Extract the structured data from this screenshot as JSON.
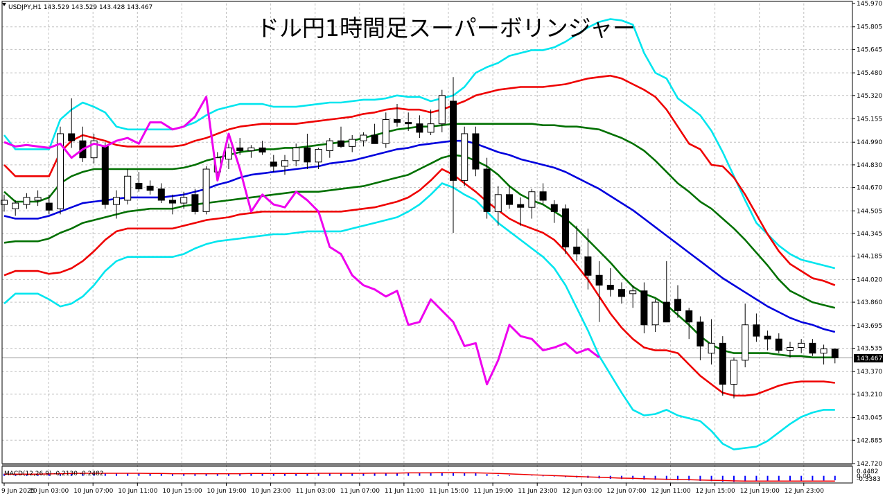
{
  "symbol_label": "USDJPY,H1  143.529 143.529 143.428 143.467",
  "title": "ドル円1時間足スーパーボリンジャー",
  "macd_label": "MACD(12,26,9) -0.2130 -0.2482",
  "macd_scale": {
    "top": "0.4482",
    "zero": "0.00",
    "bottom": "-0.3383"
  },
  "current_price_label": "143.467",
  "colors": {
    "grid": "#c0c0c0",
    "sigma3": "#00e5ee",
    "sigma2": "#ee0000",
    "sigma1": "#007000",
    "middle": "#0000dd",
    "lagging": "#ee00ee",
    "candle": "#000000",
    "macd_hist": "#0000ff",
    "macd_signal": "#ee0000"
  },
  "chart_data": {
    "type": "candlestick",
    "title": "ドル円1時間足スーパーボリンジャー",
    "ylim": [
      142.72,
      145.97
    ],
    "y_ticks": [
      "145.970",
      "145.805",
      "145.645",
      "145.480",
      "145.320",
      "145.155",
      "144.990",
      "144.830",
      "144.670",
      "144.505",
      "144.345",
      "144.185",
      "144.020",
      "143.860",
      "143.695",
      "143.535",
      "143.370",
      "143.210",
      "143.045",
      "142.885",
      "142.720"
    ],
    "x_labels": [
      "9 Jun 2025",
      "10 Jun 03:00",
      "10 Jun 07:00",
      "10 Jun 11:00",
      "10 Jun 15:00",
      "10 Jun 19:00",
      "10 Jun 23:00",
      "11 Jun 03:00",
      "11 Jun 07:00",
      "11 Jun 11:00",
      "11 Jun 15:00",
      "11 Jun 19:00",
      "11 Jun 23:00",
      "12 Jun 03:00",
      "12 Jun 07:00",
      "12 Jun 11:00",
      "12 Jun 15:00",
      "12 Jun 19:00",
      "12 Jun 23:00"
    ],
    "grid": true,
    "candles": [
      [
        144.55,
        144.62,
        144.5,
        144.58
      ],
      [
        144.52,
        144.58,
        144.47,
        144.56
      ],
      [
        144.55,
        144.63,
        144.52,
        144.6
      ],
      [
        144.58,
        144.65,
        144.54,
        144.6
      ],
      [
        144.56,
        144.62,
        144.48,
        144.51
      ],
      [
        144.52,
        145.1,
        144.48,
        145.05
      ],
      [
        145.05,
        145.3,
        144.95,
        145.0
      ],
      [
        145.0,
        145.1,
        144.85,
        144.88
      ],
      [
        144.88,
        145.05,
        144.84,
        145.0
      ],
      [
        144.96,
        144.99,
        144.52,
        144.55
      ],
      [
        144.55,
        144.65,
        144.45,
        144.6
      ],
      [
        144.58,
        144.8,
        144.55,
        144.75
      ],
      [
        144.7,
        144.78,
        144.64,
        144.66
      ],
      [
        144.68,
        144.72,
        144.62,
        144.65
      ],
      [
        144.66,
        144.7,
        144.56,
        144.58
      ],
      [
        144.58,
        144.62,
        144.48,
        144.56
      ],
      [
        144.56,
        144.64,
        144.52,
        144.6
      ],
      [
        144.62,
        144.66,
        144.48,
        144.5
      ],
      [
        144.5,
        144.82,
        144.48,
        144.8
      ],
      [
        144.78,
        144.92,
        144.74,
        144.88
      ],
      [
        144.87,
        144.98,
        144.8,
        144.95
      ],
      [
        144.95,
        145.02,
        144.9,
        144.93
      ],
      [
        144.93,
        144.97,
        144.88,
        144.95
      ],
      [
        144.95,
        145.0,
        144.9,
        144.92
      ],
      [
        144.85,
        144.9,
        144.78,
        144.82
      ],
      [
        144.82,
        144.9,
        144.76,
        144.86
      ],
      [
        144.86,
        144.98,
        144.82,
        144.95
      ],
      [
        144.95,
        145.05,
        144.8,
        144.85
      ],
      [
        144.85,
        144.95,
        144.8,
        144.94
      ],
      [
        144.93,
        145.02,
        144.88,
        145.0
      ],
      [
        145.0,
        145.1,
        144.95,
        144.96
      ],
      [
        144.96,
        145.04,
        144.92,
        145.01
      ],
      [
        145.0,
        145.06,
        144.96,
        145.04
      ],
      [
        145.04,
        145.12,
        145.0,
        144.98
      ],
      [
        144.98,
        145.2,
        144.95,
        145.15
      ],
      [
        145.15,
        145.26,
        145.1,
        145.13
      ],
      [
        145.13,
        145.2,
        145.07,
        145.12
      ],
      [
        145.12,
        145.18,
        145.02,
        145.06
      ],
      [
        145.06,
        145.22,
        145.04,
        145.12
      ],
      [
        145.12,
        145.36,
        145.06,
        145.32
      ],
      [
        145.28,
        145.45,
        144.35,
        144.72
      ],
      [
        144.72,
        145.1,
        144.68,
        145.05
      ],
      [
        145.05,
        145.1,
        144.75,
        144.8
      ],
      [
        144.8,
        144.88,
        144.45,
        144.5
      ],
      [
        144.5,
        144.68,
        144.4,
        144.62
      ],
      [
        144.62,
        144.68,
        144.52,
        144.55
      ],
      [
        144.55,
        144.6,
        144.4,
        144.53
      ],
      [
        144.53,
        144.66,
        144.45,
        144.64
      ],
      [
        144.64,
        144.7,
        144.55,
        144.58
      ],
      [
        144.55,
        144.58,
        144.42,
        144.5
      ],
      [
        144.52,
        144.55,
        144.2,
        144.25
      ],
      [
        144.25,
        144.4,
        144.15,
        144.2
      ],
      [
        144.18,
        144.38,
        143.95,
        144.05
      ],
      [
        144.05,
        144.15,
        143.72,
        143.98
      ],
      [
        143.98,
        144.1,
        143.9,
        143.95
      ],
      [
        143.95,
        144.0,
        143.85,
        143.9
      ],
      [
        143.92,
        143.98,
        143.82,
        143.94
      ],
      [
        143.94,
        144.0,
        143.64,
        143.7
      ],
      [
        143.7,
        143.88,
        143.65,
        143.86
      ],
      [
        143.86,
        144.15,
        143.74,
        143.72
      ],
      [
        143.88,
        143.98,
        143.75,
        143.8
      ],
      [
        143.8,
        143.82,
        143.6,
        143.72
      ],
      [
        143.72,
        143.76,
        143.45,
        143.55
      ],
      [
        143.5,
        143.74,
        143.42,
        143.57
      ],
      [
        143.57,
        143.62,
        143.2,
        143.28
      ],
      [
        143.28,
        143.47,
        143.18,
        143.45
      ],
      [
        143.45,
        143.85,
        143.4,
        143.7
      ],
      [
        143.7,
        143.78,
        143.58,
        143.62
      ],
      [
        143.62,
        143.66,
        143.52,
        143.6
      ],
      [
        143.6,
        143.64,
        143.5,
        143.52
      ],
      [
        143.52,
        143.58,
        143.47,
        143.54
      ],
      [
        143.54,
        143.6,
        143.5,
        143.57
      ],
      [
        143.57,
        143.6,
        143.48,
        143.5
      ],
      [
        143.5,
        143.56,
        143.42,
        143.53
      ],
      [
        143.529,
        143.529,
        143.428,
        143.467
      ]
    ],
    "bands": {
      "plus3": [
        145.04,
        144.94,
        144.94,
        144.94,
        144.94,
        145.15,
        145.22,
        145.27,
        145.24,
        145.2,
        145.1,
        145.08,
        145.08,
        145.08,
        145.08,
        145.08,
        145.1,
        145.13,
        145.18,
        145.22,
        145.24,
        145.26,
        145.26,
        145.26,
        145.24,
        145.24,
        145.24,
        145.25,
        145.26,
        145.27,
        145.27,
        145.28,
        145.29,
        145.29,
        145.3,
        145.32,
        145.31,
        145.31,
        145.28,
        145.3,
        145.32,
        145.38,
        145.48,
        145.52,
        145.55,
        145.6,
        145.62,
        145.64,
        145.64,
        145.66,
        145.7,
        145.75,
        145.8,
        145.84,
        145.86,
        145.85,
        145.82,
        145.62,
        145.48,
        145.44,
        145.3,
        145.24,
        145.18,
        145.07,
        144.92,
        144.75,
        144.58,
        144.42,
        144.34,
        144.26,
        144.2,
        144.16,
        144.14,
        144.12,
        144.1
      ],
      "plus2": [
        144.83,
        144.75,
        144.75,
        144.75,
        144.75,
        144.92,
        145.0,
        145.04,
        145.02,
        145.0,
        144.97,
        144.96,
        144.96,
        144.96,
        144.96,
        144.96,
        144.97,
        145.0,
        145.02,
        145.05,
        145.08,
        145.1,
        145.11,
        145.12,
        145.12,
        145.12,
        145.12,
        145.13,
        145.14,
        145.15,
        145.16,
        145.17,
        145.19,
        145.2,
        145.22,
        145.23,
        145.22,
        145.22,
        145.2,
        145.22,
        145.25,
        145.28,
        145.32,
        145.34,
        145.36,
        145.37,
        145.38,
        145.38,
        145.38,
        145.39,
        145.4,
        145.42,
        145.44,
        145.45,
        145.46,
        145.44,
        145.4,
        145.36,
        145.31,
        145.22,
        145.1,
        144.98,
        144.94,
        144.83,
        144.82,
        144.74,
        144.62,
        144.48,
        144.34,
        144.22,
        144.13,
        144.08,
        144.03,
        144.01,
        143.98
      ],
      "plus1": [
        144.64,
        144.57,
        144.57,
        144.57,
        144.6,
        144.7,
        144.75,
        144.78,
        144.8,
        144.8,
        144.8,
        144.8,
        144.8,
        144.8,
        144.8,
        144.8,
        144.81,
        144.83,
        144.86,
        144.88,
        144.9,
        144.92,
        144.93,
        144.94,
        144.94,
        144.95,
        144.95,
        144.96,
        144.97,
        144.98,
        144.99,
        145.0,
        145.02,
        145.04,
        145.06,
        145.08,
        145.09,
        145.1,
        145.1,
        145.11,
        145.12,
        145.12,
        145.12,
        145.12,
        145.12,
        145.12,
        145.12,
        145.12,
        145.11,
        145.11,
        145.1,
        145.1,
        145.09,
        145.08,
        145.05,
        145.02,
        144.98,
        144.93,
        144.86,
        144.78,
        144.7,
        144.64,
        144.57,
        144.52,
        144.45,
        144.38,
        144.3,
        144.21,
        144.12,
        144.02,
        143.94,
        143.9,
        143.86,
        143.84,
        143.82
      ],
      "middle": [
        144.47,
        144.45,
        144.45,
        144.45,
        144.47,
        144.5,
        144.53,
        144.56,
        144.57,
        144.58,
        144.59,
        144.6,
        144.6,
        144.6,
        144.6,
        144.61,
        144.62,
        144.64,
        144.66,
        144.69,
        144.71,
        144.74,
        144.76,
        144.77,
        144.78,
        144.79,
        144.8,
        144.81,
        144.82,
        144.84,
        144.85,
        144.86,
        144.88,
        144.9,
        144.92,
        144.94,
        144.95,
        144.97,
        144.98,
        144.99,
        145.0,
        145.0,
        144.98,
        144.95,
        144.92,
        144.9,
        144.87,
        144.85,
        144.83,
        144.81,
        144.78,
        144.74,
        144.7,
        144.66,
        144.61,
        144.56,
        144.51,
        144.45,
        144.39,
        144.33,
        144.27,
        144.21,
        144.15,
        144.09,
        144.03,
        143.98,
        143.93,
        143.88,
        143.83,
        143.79,
        143.75,
        143.72,
        143.7,
        143.67,
        143.65
      ],
      "minus1": [
        144.28,
        144.29,
        144.29,
        144.29,
        144.31,
        144.35,
        144.38,
        144.42,
        144.44,
        144.46,
        144.48,
        144.5,
        144.51,
        144.52,
        144.52,
        144.52,
        144.54,
        144.55,
        144.56,
        144.57,
        144.58,
        144.59,
        144.6,
        144.61,
        144.62,
        144.63,
        144.64,
        144.64,
        144.64,
        144.65,
        144.66,
        144.67,
        144.68,
        144.7,
        144.72,
        144.74,
        144.76,
        144.8,
        144.84,
        144.88,
        144.9,
        144.89,
        144.86,
        144.82,
        144.76,
        144.68,
        144.62,
        144.58,
        144.55,
        144.5,
        144.45,
        144.38,
        144.3,
        144.22,
        144.14,
        144.05,
        143.97,
        143.92,
        143.89,
        143.84,
        143.77,
        143.7,
        143.62,
        143.56,
        143.52,
        143.5,
        143.5,
        143.5,
        143.5,
        143.49,
        143.48,
        143.48,
        143.47,
        143.47,
        143.47
      ],
      "minus2": [
        144.05,
        144.08,
        144.08,
        144.08,
        144.06,
        144.07,
        144.1,
        144.15,
        144.22,
        144.3,
        144.36,
        144.38,
        144.38,
        144.38,
        144.38,
        144.38,
        144.4,
        144.42,
        144.44,
        144.45,
        144.46,
        144.48,
        144.49,
        144.5,
        144.5,
        144.5,
        144.5,
        144.5,
        144.5,
        144.5,
        144.5,
        144.51,
        144.52,
        144.53,
        144.55,
        144.57,
        144.6,
        144.65,
        144.72,
        144.8,
        144.76,
        144.7,
        144.64,
        144.57,
        144.51,
        144.45,
        144.41,
        144.38,
        144.35,
        144.3,
        144.22,
        144.12,
        144.02,
        143.9,
        143.78,
        143.68,
        143.6,
        143.54,
        143.52,
        143.52,
        143.5,
        143.42,
        143.34,
        143.28,
        143.22,
        143.2,
        143.2,
        143.21,
        143.24,
        143.27,
        143.29,
        143.3,
        143.3,
        143.3,
        143.29
      ],
      "minus3": [
        143.85,
        143.92,
        143.92,
        143.92,
        143.88,
        143.83,
        143.85,
        143.9,
        143.98,
        144.08,
        144.15,
        144.18,
        144.18,
        144.18,
        144.18,
        144.18,
        144.2,
        144.24,
        144.27,
        144.29,
        144.3,
        144.31,
        144.32,
        144.33,
        144.34,
        144.34,
        144.35,
        144.36,
        144.36,
        144.36,
        144.36,
        144.38,
        144.4,
        144.42,
        144.44,
        144.46,
        144.5,
        144.55,
        144.62,
        144.7,
        144.67,
        144.62,
        144.58,
        144.5,
        144.42,
        144.36,
        144.3,
        144.24,
        144.18,
        144.1,
        143.98,
        143.82,
        143.66,
        143.48,
        143.35,
        143.22,
        143.1,
        143.06,
        143.07,
        143.1,
        143.06,
        143.04,
        143.02,
        142.95,
        142.86,
        142.82,
        142.83,
        142.84,
        142.88,
        142.94,
        143.0,
        143.05,
        143.08,
        143.1,
        143.1
      ]
    },
    "lagging_span": [
      144.99,
      144.96,
      144.97,
      144.96,
      144.95,
      144.98,
      144.88,
      144.94,
      144.98,
      144.96,
      145.0,
      145.02,
      144.98,
      145.13,
      145.13,
      145.08,
      145.1,
      145.17,
      145.31,
      144.72,
      145.05,
      144.8,
      144.5,
      144.62,
      144.55,
      144.53,
      144.64,
      144.58,
      144.5,
      144.25,
      144.2,
      144.05,
      143.98,
      143.95,
      143.9,
      143.94,
      143.7,
      143.72,
      143.88,
      143.8,
      143.72,
      143.55,
      143.57,
      143.28,
      143.45,
      143.7,
      143.62,
      143.6,
      143.52,
      143.54,
      143.57,
      143.5,
      143.53,
      143.47
    ],
    "macd": {
      "label": "MACD(12,26,9) -0.2130 -0.2482",
      "scale": [
        0.4482,
        0.0,
        -0.3383
      ],
      "histogram": [
        0.1,
        0.1,
        0.1,
        0.1,
        0.11,
        0.12,
        0.13,
        0.14,
        0.14,
        0.13,
        0.12,
        0.12,
        0.11,
        0.1,
        0.09,
        0.08,
        0.08,
        0.08,
        0.09,
        0.1,
        0.11,
        0.11,
        0.12,
        0.12,
        0.12,
        0.12,
        0.12,
        0.12,
        0.13,
        0.13,
        0.13,
        0.13,
        0.13,
        0.14,
        0.14,
        0.15,
        0.15,
        0.15,
        0.16,
        0.17,
        0.14,
        0.13,
        0.12,
        0.08,
        0.05,
        0.03,
        0.0,
        -0.01,
        -0.02,
        -0.03,
        -0.06,
        -0.08,
        -0.1,
        -0.12,
        -0.14,
        -0.15,
        -0.16,
        -0.18,
        -0.19,
        -0.2,
        -0.21,
        -0.22,
        -0.24,
        -0.25,
        -0.28,
        -0.29,
        -0.28,
        -0.27,
        -0.26,
        -0.25,
        -0.24,
        -0.23,
        -0.22,
        -0.22,
        -0.21
      ],
      "signal": [
        0.08,
        0.08,
        0.08,
        0.08,
        0.09,
        0.1,
        0.11,
        0.12,
        0.12,
        0.12,
        0.12,
        0.12,
        0.12,
        0.11,
        0.11,
        0.1,
        0.1,
        0.1,
        0.1,
        0.1,
        0.1,
        0.1,
        0.11,
        0.11,
        0.11,
        0.11,
        0.11,
        0.11,
        0.12,
        0.12,
        0.12,
        0.12,
        0.12,
        0.13,
        0.13,
        0.13,
        0.14,
        0.14,
        0.14,
        0.15,
        0.15,
        0.14,
        0.14,
        0.13,
        0.11,
        0.09,
        0.07,
        0.05,
        0.03,
        0.01,
        -0.01,
        -0.03,
        -0.05,
        -0.07,
        -0.09,
        -0.11,
        -0.12,
        -0.14,
        -0.15,
        -0.16,
        -0.17,
        -0.18,
        -0.2,
        -0.21,
        -0.22,
        -0.24,
        -0.25,
        -0.25,
        -0.25,
        -0.25,
        -0.25,
        -0.25,
        -0.25,
        -0.25,
        -0.25
      ]
    }
  }
}
